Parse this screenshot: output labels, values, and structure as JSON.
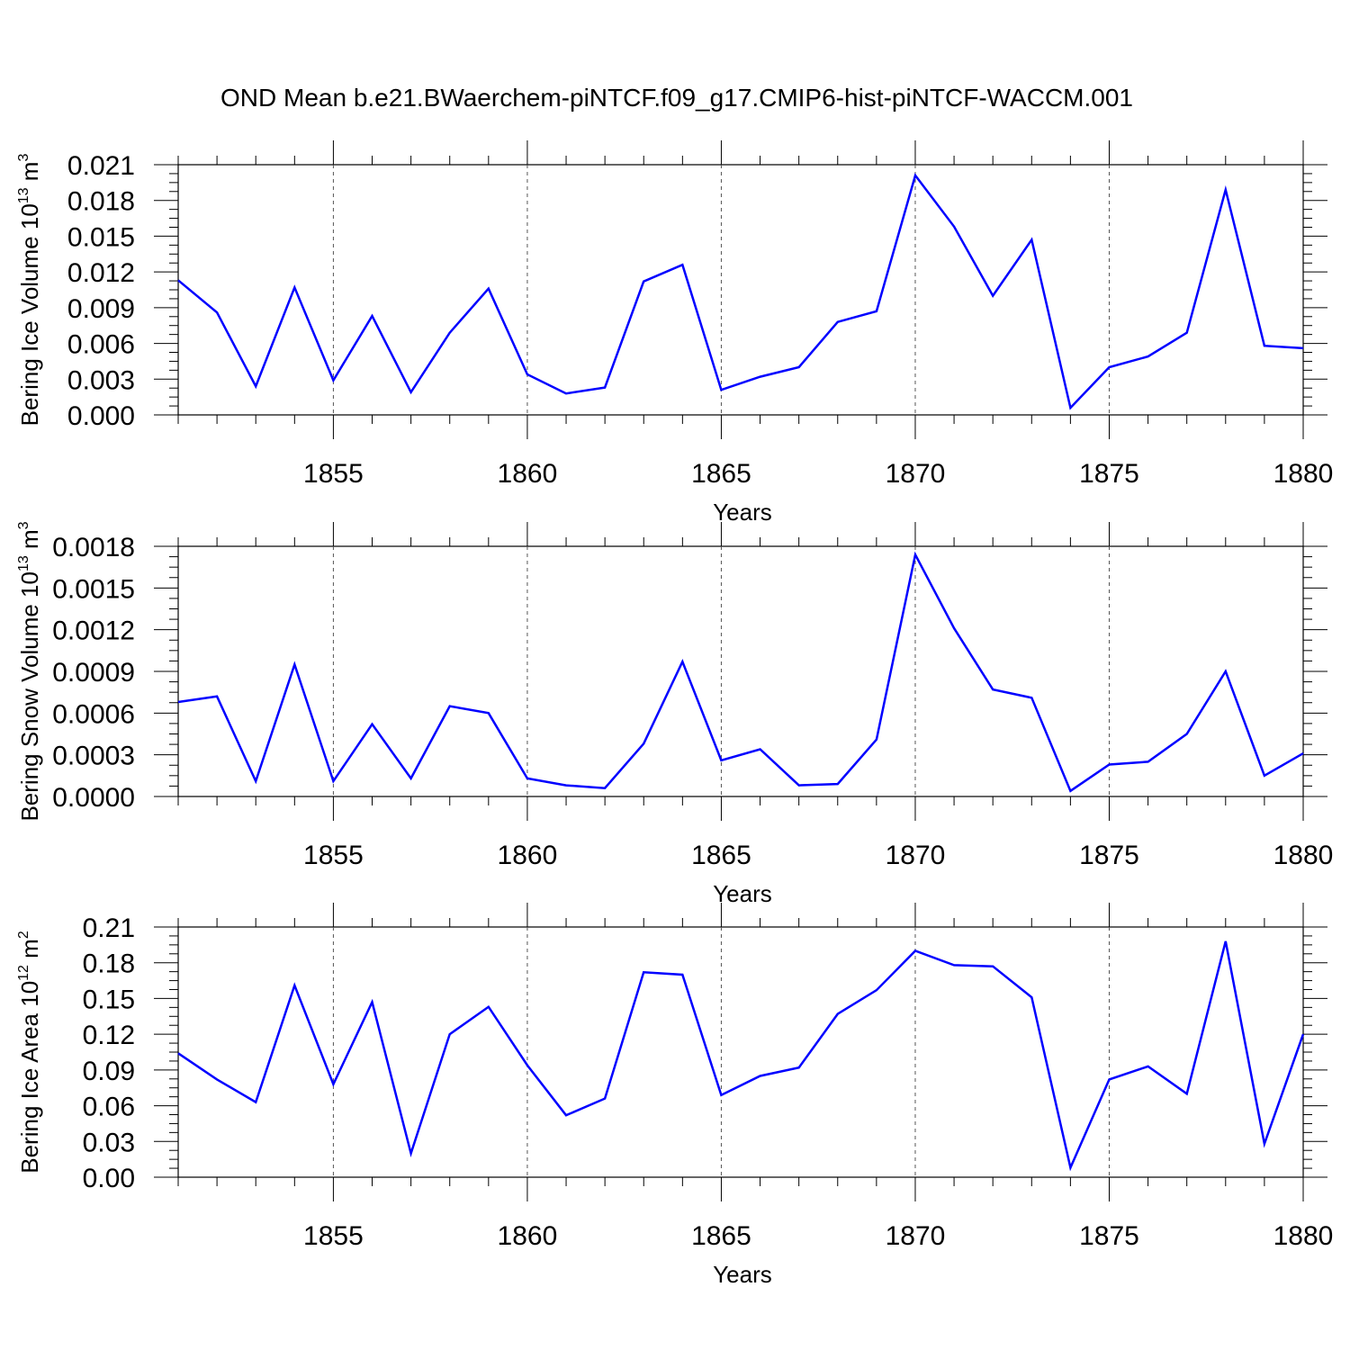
{
  "chart_data": {
    "title": "OND Mean b.e21.BWaerchem-piNTCF.f09_g17.CMIP6-hist-piNTCF-WACCM.001",
    "x": [
      1851,
      1852,
      1853,
      1854,
      1855,
      1856,
      1857,
      1858,
      1859,
      1860,
      1861,
      1862,
      1863,
      1864,
      1865,
      1866,
      1867,
      1868,
      1869,
      1870,
      1871,
      1872,
      1873,
      1874,
      1875,
      1876,
      1877,
      1878,
      1879,
      1880
    ],
    "xlim": [
      1851,
      1880
    ],
    "xticks": [
      1855,
      1860,
      1865,
      1870,
      1875,
      1880
    ],
    "charts": [
      {
        "type": "line",
        "ylabel_main": "Bering Ice Volume 10",
        "ylabel_exp": "13",
        "ylabel_unit": " m",
        "ylabel_unit_exp": "3",
        "xlabel": "Years",
        "ylim": [
          0,
          0.021
        ],
        "yticks": [
          "0.000",
          "0.003",
          "0.006",
          "0.009",
          "0.012",
          "0.015",
          "0.018",
          "0.021"
        ],
        "values": [
          0.0113,
          0.0086,
          0.0024,
          0.0107,
          0.0029,
          0.0083,
          0.0019,
          0.0069,
          0.0106,
          0.0034,
          0.0018,
          0.0023,
          0.0112,
          0.0126,
          0.0021,
          0.0032,
          0.004,
          0.0078,
          0.0087,
          0.0201,
          0.0158,
          0.01,
          0.0147,
          0.0006,
          0.004,
          0.0049,
          0.0069,
          0.0189,
          0.0058,
          0.0056
        ]
      },
      {
        "type": "line",
        "ylabel_main": "Bering Snow Volume 10",
        "ylabel_exp": "13",
        "ylabel_unit": " m",
        "ylabel_unit_exp": "3",
        "xlabel": "Years",
        "ylim": [
          0,
          0.0018
        ],
        "yticks": [
          "0.0000",
          "0.0003",
          "0.0006",
          "0.0009",
          "0.0012",
          "0.0015",
          "0.0018"
        ],
        "values": [
          0.00068,
          0.00072,
          0.00011,
          0.00095,
          0.00011,
          0.00052,
          0.00013,
          0.00065,
          0.0006,
          0.00013,
          8e-05,
          6e-05,
          0.00038,
          0.00097,
          0.00026,
          0.00034,
          8e-05,
          9e-05,
          0.00041,
          0.00174,
          0.00121,
          0.00077,
          0.00071,
          4e-05,
          0.00023,
          0.00025,
          0.00045,
          0.0009,
          0.00015,
          0.00031
        ]
      },
      {
        "type": "line",
        "ylabel_main": "Bering Ice Area 10",
        "ylabel_exp": "12",
        "ylabel_unit": " m",
        "ylabel_unit_exp": "2",
        "xlabel": "Years",
        "ylim": [
          0,
          0.21
        ],
        "yticks": [
          "0.00",
          "0.03",
          "0.06",
          "0.09",
          "0.12",
          "0.15",
          "0.18",
          "0.21"
        ],
        "values": [
          0.104,
          0.082,
          0.063,
          0.161,
          0.078,
          0.147,
          0.02,
          0.12,
          0.143,
          0.094,
          0.052,
          0.066,
          0.172,
          0.17,
          0.069,
          0.085,
          0.092,
          0.137,
          0.157,
          0.19,
          0.178,
          0.177,
          0.151,
          0.008,
          0.082,
          0.093,
          0.07,
          0.198,
          0.028,
          0.12
        ]
      }
    ],
    "line_color": "#0000ff"
  }
}
